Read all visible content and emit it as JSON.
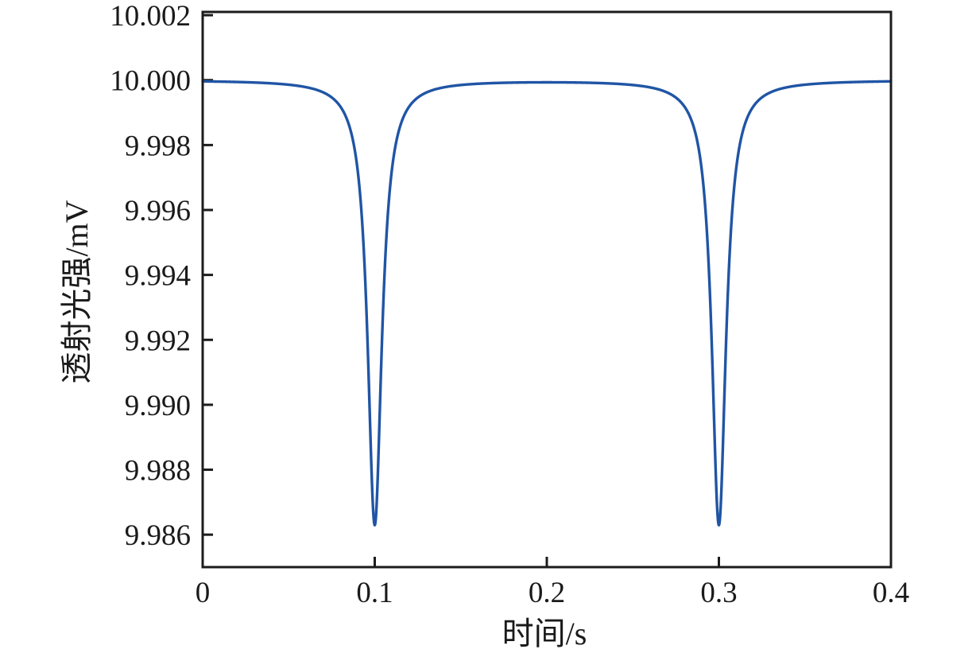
{
  "figure": {
    "background_color": "#ffffff",
    "text_color": "#1a1a1a"
  },
  "chart_data": {
    "type": "line",
    "title": "",
    "xlabel": "时间/s",
    "ylabel": "透射光强/mV",
    "xlim": [
      0,
      0.4
    ],
    "ylim": [
      9.985,
      10.0021
    ],
    "x_ticks": [
      0,
      0.1,
      0.2,
      0.3,
      0.4
    ],
    "x_tick_labels": [
      "0",
      "0.1",
      "0.2",
      "0.3",
      "0.4"
    ],
    "y_ticks": [
      10.002,
      10.0,
      9.998,
      9.996,
      9.994,
      9.992,
      9.99,
      9.988,
      9.986
    ],
    "y_tick_labels": [
      "10.002",
      "10.000",
      "9.998",
      "9.996",
      "9.994",
      "9.992",
      "9.990",
      "9.988",
      "9.986"
    ],
    "grid": false,
    "legend": "none",
    "frame": "full-box",
    "tick_direction": "in",
    "line_color": "#2055a5",
    "axis_color": "#1c1c1c",
    "series": [
      {
        "name": "透射光强",
        "model": "baseline_with_lorentzian_dips",
        "baseline_mV": 10.0,
        "dip_centers_s": [
          0.1,
          0.3
        ],
        "dip_min_mV": 9.9863,
        "dip_depth_mV": 0.0137,
        "dip_hwhm_s": 0.005
      }
    ],
    "key_points": [
      {
        "x": 0.0,
        "y": 10.0
      },
      {
        "x": 0.1,
        "y": 9.9863
      },
      {
        "x": 0.2,
        "y": 10.0
      },
      {
        "x": 0.3,
        "y": 9.9863
      },
      {
        "x": 0.4,
        "y": 10.0
      }
    ]
  }
}
